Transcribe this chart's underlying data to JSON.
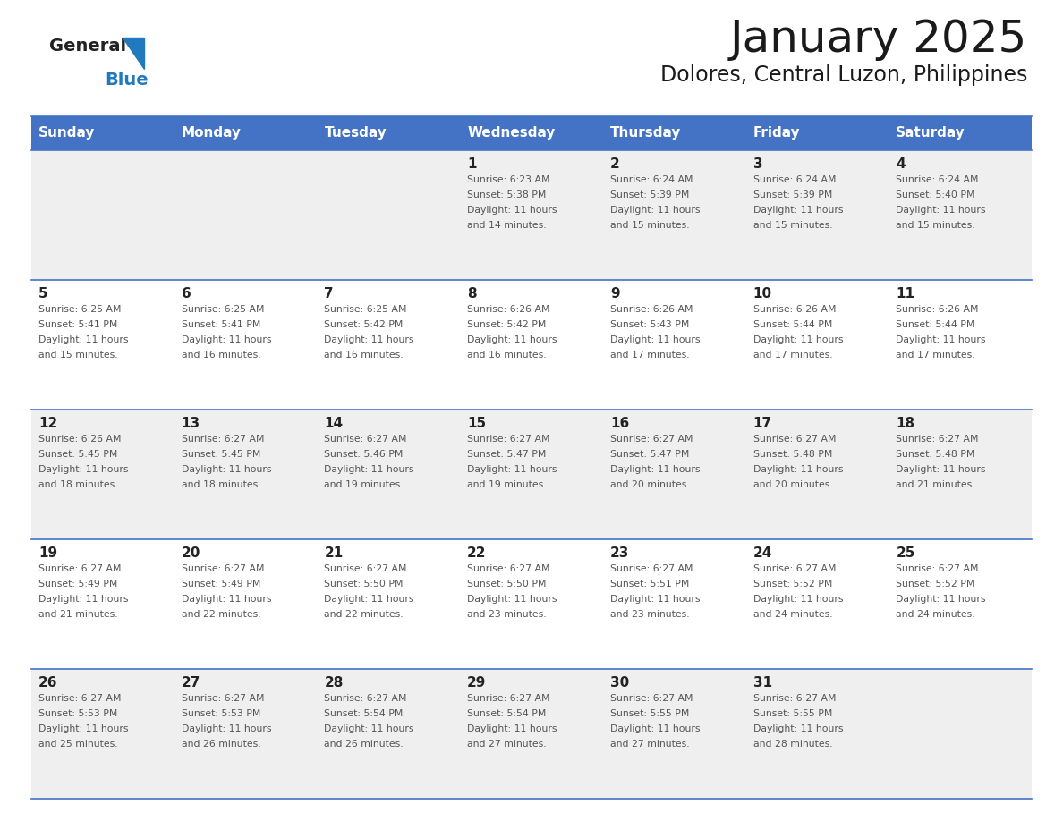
{
  "title": "January 2025",
  "subtitle": "Dolores, Central Luzon, Philippines",
  "days_of_week": [
    "Sunday",
    "Monday",
    "Tuesday",
    "Wednesday",
    "Thursday",
    "Friday",
    "Saturday"
  ],
  "header_bg": "#4472C4",
  "header_text": "#FFFFFF",
  "row_bg_odd": "#EFEFEF",
  "row_bg_even": "#FFFFFF",
  "cell_border_color": "#4472C4",
  "row_border_color": "#4472C4",
  "title_color": "#1a1a1a",
  "subtitle_color": "#1a1a1a",
  "text_color": "#555555",
  "day_num_color": "#222222",
  "logo_general_color": "#222222",
  "logo_blue_color": "#2179BE",
  "weeks": [
    {
      "days": [
        {
          "date": "",
          "sunrise": "",
          "sunset": "",
          "daylight_min": ""
        },
        {
          "date": "",
          "sunrise": "",
          "sunset": "",
          "daylight_min": ""
        },
        {
          "date": "",
          "sunrise": "",
          "sunset": "",
          "daylight_min": ""
        },
        {
          "date": "1",
          "sunrise": "6:23 AM",
          "sunset": "5:38 PM",
          "daylight_min": "14"
        },
        {
          "date": "2",
          "sunrise": "6:24 AM",
          "sunset": "5:39 PM",
          "daylight_min": "15"
        },
        {
          "date": "3",
          "sunrise": "6:24 AM",
          "sunset": "5:39 PM",
          "daylight_min": "15"
        },
        {
          "date": "4",
          "sunrise": "6:24 AM",
          "sunset": "5:40 PM",
          "daylight_min": "15"
        }
      ]
    },
    {
      "days": [
        {
          "date": "5",
          "sunrise": "6:25 AM",
          "sunset": "5:41 PM",
          "daylight_min": "15"
        },
        {
          "date": "6",
          "sunrise": "6:25 AM",
          "sunset": "5:41 PM",
          "daylight_min": "16"
        },
        {
          "date": "7",
          "sunrise": "6:25 AM",
          "sunset": "5:42 PM",
          "daylight_min": "16"
        },
        {
          "date": "8",
          "sunrise": "6:26 AM",
          "sunset": "5:42 PM",
          "daylight_min": "16"
        },
        {
          "date": "9",
          "sunrise": "6:26 AM",
          "sunset": "5:43 PM",
          "daylight_min": "17"
        },
        {
          "date": "10",
          "sunrise": "6:26 AM",
          "sunset": "5:44 PM",
          "daylight_min": "17"
        },
        {
          "date": "11",
          "sunrise": "6:26 AM",
          "sunset": "5:44 PM",
          "daylight_min": "17"
        }
      ]
    },
    {
      "days": [
        {
          "date": "12",
          "sunrise": "6:26 AM",
          "sunset": "5:45 PM",
          "daylight_min": "18"
        },
        {
          "date": "13",
          "sunrise": "6:27 AM",
          "sunset": "5:45 PM",
          "daylight_min": "18"
        },
        {
          "date": "14",
          "sunrise": "6:27 AM",
          "sunset": "5:46 PM",
          "daylight_min": "19"
        },
        {
          "date": "15",
          "sunrise": "6:27 AM",
          "sunset": "5:47 PM",
          "daylight_min": "19"
        },
        {
          "date": "16",
          "sunrise": "6:27 AM",
          "sunset": "5:47 PM",
          "daylight_min": "20"
        },
        {
          "date": "17",
          "sunrise": "6:27 AM",
          "sunset": "5:48 PM",
          "daylight_min": "20"
        },
        {
          "date": "18",
          "sunrise": "6:27 AM",
          "sunset": "5:48 PM",
          "daylight_min": "21"
        }
      ]
    },
    {
      "days": [
        {
          "date": "19",
          "sunrise": "6:27 AM",
          "sunset": "5:49 PM",
          "daylight_min": "21"
        },
        {
          "date": "20",
          "sunrise": "6:27 AM",
          "sunset": "5:49 PM",
          "daylight_min": "22"
        },
        {
          "date": "21",
          "sunrise": "6:27 AM",
          "sunset": "5:50 PM",
          "daylight_min": "22"
        },
        {
          "date": "22",
          "sunrise": "6:27 AM",
          "sunset": "5:50 PM",
          "daylight_min": "23"
        },
        {
          "date": "23",
          "sunrise": "6:27 AM",
          "sunset": "5:51 PM",
          "daylight_min": "23"
        },
        {
          "date": "24",
          "sunrise": "6:27 AM",
          "sunset": "5:52 PM",
          "daylight_min": "24"
        },
        {
          "date": "25",
          "sunrise": "6:27 AM",
          "sunset": "5:52 PM",
          "daylight_min": "24"
        }
      ]
    },
    {
      "days": [
        {
          "date": "26",
          "sunrise": "6:27 AM",
          "sunset": "5:53 PM",
          "daylight_min": "25"
        },
        {
          "date": "27",
          "sunrise": "6:27 AM",
          "sunset": "5:53 PM",
          "daylight_min": "26"
        },
        {
          "date": "28",
          "sunrise": "6:27 AM",
          "sunset": "5:54 PM",
          "daylight_min": "26"
        },
        {
          "date": "29",
          "sunrise": "6:27 AM",
          "sunset": "5:54 PM",
          "daylight_min": "27"
        },
        {
          "date": "30",
          "sunrise": "6:27 AM",
          "sunset": "5:55 PM",
          "daylight_min": "27"
        },
        {
          "date": "31",
          "sunrise": "6:27 AM",
          "sunset": "5:55 PM",
          "daylight_min": "28"
        },
        {
          "date": "",
          "sunrise": "",
          "sunset": "",
          "daylight_min": ""
        }
      ]
    }
  ]
}
